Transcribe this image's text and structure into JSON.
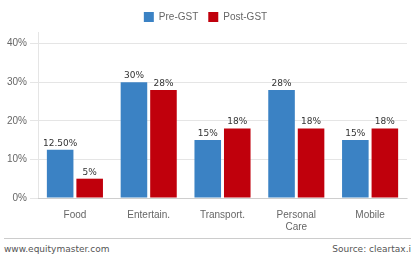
{
  "chart_data": {
    "type": "bar",
    "categories": [
      "Food",
      "Entertain.",
      "Transport.",
      "Personal\nCare",
      "Mobile"
    ],
    "series": [
      {
        "name": "Pre-GST",
        "color": "#3B82C4",
        "values": [
          12.5,
          30,
          15,
          28,
          15
        ],
        "value_labels": [
          "12.50%",
          "30%",
          "15%",
          "28%",
          "15%"
        ]
      },
      {
        "name": "Post-GST",
        "color": "#C0000C",
        "values": [
          5,
          28,
          18,
          18,
          18
        ],
        "value_labels": [
          "5%",
          "28%",
          "18%",
          "18%",
          "18%"
        ]
      }
    ],
    "ylim": [
      0,
      43
    ],
    "yticks": [
      {
        "value": 0,
        "label": "0%"
      },
      {
        "value": 10,
        "label": "10%"
      },
      {
        "value": 20,
        "label": "20%"
      },
      {
        "value": 30,
        "label": "30%"
      },
      {
        "value": 40,
        "label": "40%"
      }
    ],
    "grid": true,
    "legend": "top",
    "data_labels": true,
    "annotations": [
      "www.equitymaster.com",
      "Source: cleartax.i"
    ]
  }
}
